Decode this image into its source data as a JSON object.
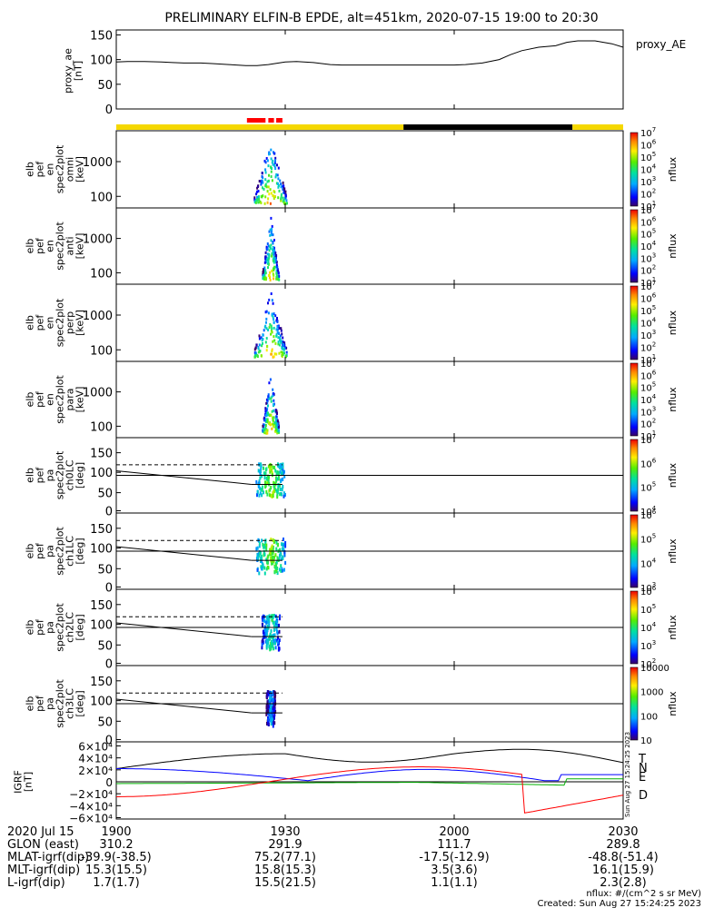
{
  "title": "PRELIMINARY ELFIN-B EPDE, alt=451km, 2020-07-15 19:00 to 20:30",
  "colors": {
    "yellow": "#f5d800",
    "black": "#000000",
    "red": "#ff0000",
    "blue": "#0000ff",
    "green": "#00b000"
  },
  "chart_data": [
    {
      "id": "ae",
      "type": "line",
      "ylabel": [
        "proxy_ae",
        "[nT]"
      ],
      "ylim": [
        0,
        160
      ],
      "yticks": [
        0,
        50,
        100,
        150
      ],
      "legend": "proxy_AE",
      "x_minutes": [
        0,
        10,
        20,
        30,
        40,
        50,
        60,
        70,
        80,
        90
      ],
      "x": [
        0,
        2,
        5,
        8,
        10,
        12,
        15,
        17,
        20,
        23,
        25,
        27,
        30,
        32,
        35,
        38,
        40,
        45,
        50,
        55,
        60,
        62,
        65,
        68,
        70,
        72,
        75,
        78,
        80,
        82,
        85,
        88,
        90
      ],
      "values": [
        95,
        96,
        96,
        95,
        94,
        93,
        93,
        92,
        90,
        88,
        88,
        90,
        95,
        96,
        94,
        90,
        89,
        89,
        89,
        89,
        89,
        90,
        93,
        100,
        110,
        118,
        125,
        128,
        135,
        138,
        138,
        132,
        125
      ]
    },
    {
      "id": "bar",
      "type": "bar",
      "segments": [
        {
          "from": 0,
          "to": 51,
          "color": "yellow"
        },
        {
          "from": 51,
          "to": 81,
          "color": "black"
        },
        {
          "from": 81,
          "to": 90,
          "color": "yellow"
        }
      ],
      "science_marks": [
        {
          "from": 23.2,
          "to": 26.5
        },
        {
          "from": 27.0,
          "to": 28.0
        },
        {
          "from": 28.4,
          "to": 29.5
        }
      ]
    },
    {
      "id": "en_omni",
      "type": "heatmap",
      "ylabel": [
        "elb",
        "pef",
        "en",
        "spec2plot",
        "omni",
        "[keV]"
      ],
      "yticks": [
        "100",
        "1000"
      ],
      "cbar": [
        "10^1",
        "10^2",
        "10^3",
        "10^4",
        "10^5",
        "10^6",
        "10^7"
      ],
      "cbar_label": "nflux"
    },
    {
      "id": "en_anti",
      "type": "heatmap",
      "ylabel": [
        "elb",
        "pef",
        "en",
        "spec2plot",
        "anti",
        "[keV]"
      ],
      "yticks": [
        "100",
        "1000"
      ],
      "cbar": [
        "10^1",
        "10^2",
        "10^3",
        "10^4",
        "10^5",
        "10^6",
        "10^7"
      ],
      "cbar_label": "nflux"
    },
    {
      "id": "en_perp",
      "type": "heatmap",
      "ylabel": [
        "elb",
        "pef",
        "en",
        "spec2plot",
        "perp",
        "[keV]"
      ],
      "yticks": [
        "100",
        "1000"
      ],
      "cbar": [
        "10^1",
        "10^2",
        "10^3",
        "10^4",
        "10^5",
        "10^6",
        "10^7"
      ],
      "cbar_label": "nflux"
    },
    {
      "id": "en_para",
      "type": "heatmap",
      "ylabel": [
        "elb",
        "pef",
        "en",
        "spec2plot",
        "para",
        "[keV]"
      ],
      "yticks": [
        "100",
        "1000"
      ],
      "cbar": [
        "10^1",
        "10^2",
        "10^3",
        "10^4",
        "10^5",
        "10^6",
        "10^7"
      ],
      "cbar_label": "nflux"
    },
    {
      "id": "pa0",
      "type": "heatmap",
      "ylabel": [
        "elb",
        "pef",
        "pa",
        "spec2plot",
        "ch0LC",
        "[deg]"
      ],
      "yticks": [
        "0",
        "50",
        "100",
        "150"
      ],
      "cbar": [
        "10^4",
        "10^5",
        "10^6",
        "10^7"
      ],
      "cbar_label": "nflux"
    },
    {
      "id": "pa1",
      "type": "heatmap",
      "ylabel": [
        "elb",
        "pef",
        "pa",
        "spec2plot",
        "ch1LC",
        "[deg]"
      ],
      "yticks": [
        "0",
        "50",
        "100",
        "150"
      ],
      "cbar": [
        "10^3",
        "10^4",
        "10^5",
        "10^6"
      ],
      "cbar_label": "nflux"
    },
    {
      "id": "pa2",
      "type": "heatmap",
      "ylabel": [
        "elb",
        "pef",
        "pa",
        "spec2plot",
        "ch2LC",
        "[deg]"
      ],
      "yticks": [
        "0",
        "50",
        "100",
        "150"
      ],
      "cbar": [
        "10^2",
        "10^3",
        "10^4",
        "10^5",
        "10^6"
      ],
      "cbar_label": "nflux"
    },
    {
      "id": "pa3",
      "type": "heatmap",
      "ylabel": [
        "elb",
        "pef",
        "pa",
        "spec2plot",
        "ch3LC",
        "[deg]"
      ],
      "yticks": [
        "0",
        "50",
        "100",
        "150"
      ],
      "cbar": [
        "10",
        "100",
        "1000",
        "10000"
      ],
      "cbar_label": "nflux"
    },
    {
      "id": "igrf",
      "type": "line",
      "ylabel": [
        "IGRF",
        "[nT]"
      ],
      "yticks": [
        "6×10⁴",
        "4×10⁴",
        "2×10⁴",
        "0",
        "−2×10⁴",
        "−4×10⁴",
        "−6×10⁴"
      ],
      "legend": [
        "T",
        "N",
        "E",
        "D"
      ],
      "stamp": "Sun Aug 27 15:24:25 2023"
    }
  ],
  "xaxis": {
    "date": "2020 Jul 15",
    "ticks": [
      "1900",
      "1930",
      "2000",
      "2030"
    ]
  },
  "ephemeris": [
    {
      "label": "GLON (east)",
      "values": [
        "310.2",
        "291.9",
        "111.7",
        "289.8"
      ]
    },
    {
      "label": "MLAT-igrf(dip)",
      "values": [
        "-39.9(-38.5)",
        "75.2(77.1)",
        "-17.5(-12.9)",
        "-48.8(-51.4)"
      ]
    },
    {
      "label": "MLT-igrf(dip)",
      "values": [
        "15.3(15.5)",
        "15.8(15.3)",
        "3.5(3.6)",
        "16.1(15.9)"
      ]
    },
    {
      "label": "L-igrf(dip)",
      "values": [
        "1.7(1.7)",
        "15.5(21.5)",
        "1.1(1.1)",
        "2.3(2.8)"
      ]
    }
  ],
  "footer": {
    "units": "nflux: #/(cm^2 s sr MeV)",
    "created": "Created: Sun Aug 27 15:24:25 2023"
  }
}
